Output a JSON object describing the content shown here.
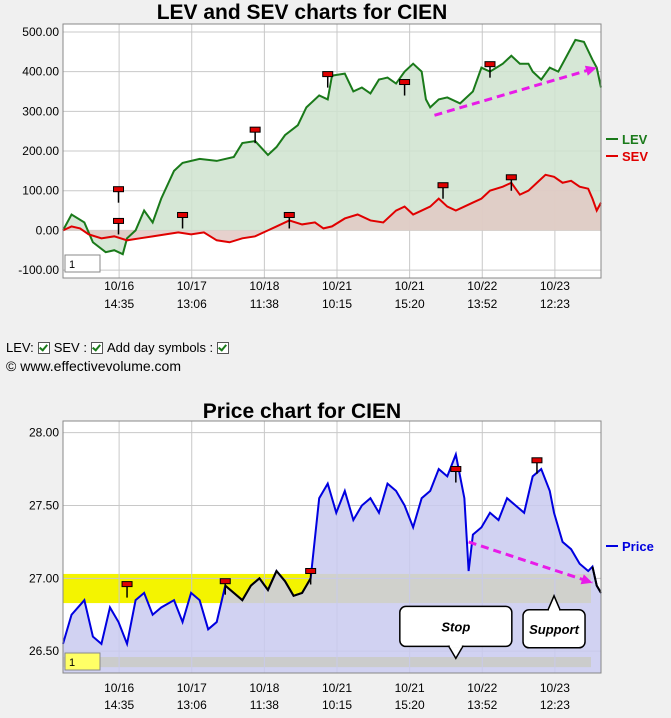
{
  "chart_data": [
    {
      "type": "line",
      "title": "LEV and SEV charts for CIEN",
      "ylim": [
        -120,
        520
      ],
      "yticks": [
        "500.00",
        "400.00",
        "300.00",
        "200.00",
        "100.00",
        "0.00",
        "-100.00"
      ],
      "xticks": [
        {
          "date": "10/16",
          "time": "14:35"
        },
        {
          "date": "10/17",
          "time": "13:06"
        },
        {
          "date": "10/18",
          "time": "11:38"
        },
        {
          "date": "10/21",
          "time": "10:15"
        },
        {
          "date": "10/21",
          "time": "15:20"
        },
        {
          "date": "10/22",
          "time": "13:52"
        },
        {
          "date": "10/23",
          "time": "12:23"
        }
      ],
      "input_value": "1",
      "legend_position": "right",
      "series": [
        {
          "name": "LEV",
          "color": "#1a7a1a",
          "fill": "#cfe3cf",
          "points": [
            [
              0,
              0
            ],
            [
              0.02,
              40
            ],
            [
              0.05,
              20
            ],
            [
              0.07,
              -30
            ],
            [
              0.1,
              -55
            ],
            [
              0.12,
              -50
            ],
            [
              0.14,
              -60
            ],
            [
              0.15,
              -20
            ],
            [
              0.17,
              0
            ],
            [
              0.19,
              50
            ],
            [
              0.21,
              20
            ],
            [
              0.23,
              80
            ],
            [
              0.26,
              150
            ],
            [
              0.28,
              170
            ],
            [
              0.32,
              180
            ],
            [
              0.36,
              175
            ],
            [
              0.4,
              185
            ],
            [
              0.42,
              220
            ],
            [
              0.45,
              225
            ],
            [
              0.48,
              190
            ],
            [
              0.5,
              210
            ],
            [
              0.52,
              240
            ],
            [
              0.55,
              265
            ],
            [
              0.57,
              310
            ],
            [
              0.6,
              340
            ],
            [
              0.62,
              330
            ],
            [
              0.63,
              390
            ],
            [
              0.66,
              395
            ],
            [
              0.68,
              350
            ],
            [
              0.7,
              360
            ],
            [
              0.72,
              345
            ],
            [
              0.74,
              380
            ],
            [
              0.76,
              385
            ],
            [
              0.78,
              370
            ],
            [
              0.8,
              400
            ],
            [
              0.82,
              420
            ],
            [
              0.84,
              400
            ],
            [
              0.85,
              330
            ],
            [
              0.86,
              310
            ],
            [
              0.88,
              330
            ],
            [
              0.9,
              335
            ],
            [
              0.93,
              320
            ],
            [
              0.96,
              350
            ],
            [
              0.98,
              410
            ],
            [
              1.0,
              400
            ],
            [
              1.03,
              420
            ],
            [
              1.05,
              440
            ],
            [
              1.07,
              420
            ],
            [
              1.09,
              420
            ],
            [
              1.1,
              400
            ],
            [
              1.12,
              380
            ],
            [
              1.14,
              410
            ],
            [
              1.16,
              400
            ],
            [
              1.18,
              440
            ],
            [
              1.2,
              480
            ],
            [
              1.22,
              475
            ],
            [
              1.24,
              430
            ],
            [
              1.25,
              410
            ],
            [
              1.26,
              360
            ]
          ]
        },
        {
          "name": "SEV",
          "color": "#e00000",
          "fill": "#e2c9c4",
          "points": [
            [
              0,
              0
            ],
            [
              0.02,
              10
            ],
            [
              0.04,
              5
            ],
            [
              0.06,
              -10
            ],
            [
              0.09,
              -20
            ],
            [
              0.12,
              -15
            ],
            [
              0.15,
              -25
            ],
            [
              0.18,
              -20
            ],
            [
              0.21,
              -15
            ],
            [
              0.24,
              -10
            ],
            [
              0.27,
              -5
            ],
            [
              0.3,
              -10
            ],
            [
              0.33,
              -5
            ],
            [
              0.36,
              -25
            ],
            [
              0.39,
              -30
            ],
            [
              0.42,
              -20
            ],
            [
              0.45,
              -15
            ],
            [
              0.48,
              0
            ],
            [
              0.5,
              10
            ],
            [
              0.53,
              25
            ],
            [
              0.56,
              15
            ],
            [
              0.59,
              20
            ],
            [
              0.61,
              5
            ],
            [
              0.63,
              10
            ],
            [
              0.66,
              30
            ],
            [
              0.69,
              40
            ],
            [
              0.72,
              25
            ],
            [
              0.75,
              20
            ],
            [
              0.78,
              50
            ],
            [
              0.8,
              60
            ],
            [
              0.82,
              40
            ],
            [
              0.84,
              50
            ],
            [
              0.86,
              60
            ],
            [
              0.88,
              80
            ],
            [
              0.9,
              60
            ],
            [
              0.92,
              50
            ],
            [
              0.94,
              60
            ],
            [
              0.96,
              70
            ],
            [
              0.98,
              80
            ],
            [
              1.0,
              100
            ],
            [
              1.03,
              110
            ],
            [
              1.05,
              120
            ],
            [
              1.07,
              90
            ],
            [
              1.09,
              100
            ],
            [
              1.11,
              120
            ],
            [
              1.13,
              140
            ],
            [
              1.15,
              135
            ],
            [
              1.17,
              120
            ],
            [
              1.19,
              125
            ],
            [
              1.21,
              110
            ],
            [
              1.23,
              105
            ],
            [
              1.24,
              80
            ],
            [
              1.25,
              50
            ],
            [
              1.26,
              70
            ]
          ]
        }
      ],
      "day_markers": [
        [
          0.13,
          20
        ],
        [
          0.13,
          100
        ],
        [
          0.28,
          35
        ],
        [
          0.45,
          250
        ],
        [
          0.53,
          35
        ],
        [
          0.62,
          390
        ],
        [
          0.8,
          370
        ],
        [
          0.89,
          110
        ],
        [
          1.0,
          415
        ],
        [
          1.05,
          130
        ]
      ],
      "arrow": {
        "from": [
          0.87,
          290
        ],
        "to": [
          1.25,
          410
        ],
        "color": "#e81be8"
      }
    },
    {
      "type": "line",
      "title": "Price chart for CIEN",
      "ylim": [
        26.35,
        28.08
      ],
      "yticks": [
        "28.00",
        "27.50",
        "27.00",
        "26.50"
      ],
      "xticks": [
        {
          "date": "10/16",
          "time": "14:35"
        },
        {
          "date": "10/17",
          "time": "13:06"
        },
        {
          "date": "10/18",
          "time": "11:38"
        },
        {
          "date": "10/21",
          "time": "10:15"
        },
        {
          "date": "10/21",
          "time": "15:20"
        },
        {
          "date": "10/22",
          "time": "13:52"
        },
        {
          "date": "10/23",
          "time": "12:23"
        }
      ],
      "input_value": "1",
      "legend_position": "right",
      "series": [
        {
          "name": "Price",
          "color": "#0000e0",
          "fill": "#c9caf0",
          "points": [
            [
              0,
              26.55
            ],
            [
              0.02,
              26.75
            ],
            [
              0.05,
              26.85
            ],
            [
              0.07,
              26.6
            ],
            [
              0.09,
              26.55
            ],
            [
              0.11,
              26.8
            ],
            [
              0.13,
              26.7
            ],
            [
              0.15,
              26.55
            ],
            [
              0.17,
              26.85
            ],
            [
              0.19,
              26.9
            ],
            [
              0.21,
              26.75
            ],
            [
              0.23,
              26.8
            ],
            [
              0.26,
              26.85
            ],
            [
              0.28,
              26.7
            ],
            [
              0.3,
              26.9
            ],
            [
              0.32,
              26.85
            ],
            [
              0.34,
              26.65
            ],
            [
              0.36,
              26.7
            ],
            [
              0.38,
              26.95
            ],
            [
              0.4,
              26.9
            ],
            [
              0.42,
              26.85
            ],
            [
              0.44,
              26.95
            ],
            [
              0.46,
              27.0
            ],
            [
              0.48,
              26.92
            ],
            [
              0.5,
              27.05
            ],
            [
              0.52,
              26.98
            ],
            [
              0.54,
              26.88
            ],
            [
              0.56,
              26.9
            ],
            [
              0.57,
              26.95
            ],
            [
              0.58,
              27.0
            ],
            [
              0.6,
              27.55
            ],
            [
              0.62,
              27.65
            ],
            [
              0.64,
              27.45
            ],
            [
              0.66,
              27.6
            ],
            [
              0.68,
              27.4
            ],
            [
              0.7,
              27.5
            ],
            [
              0.72,
              27.55
            ],
            [
              0.74,
              27.45
            ],
            [
              0.76,
              27.65
            ],
            [
              0.78,
              27.6
            ],
            [
              0.8,
              27.5
            ],
            [
              0.82,
              27.35
            ],
            [
              0.84,
              27.55
            ],
            [
              0.86,
              27.6
            ],
            [
              0.88,
              27.75
            ],
            [
              0.9,
              27.7
            ],
            [
              0.92,
              27.85
            ],
            [
              0.94,
              27.55
            ],
            [
              0.95,
              27.05
            ],
            [
              0.96,
              27.3
            ],
            [
              0.98,
              27.35
            ],
            [
              1.0,
              27.45
            ],
            [
              1.02,
              27.4
            ],
            [
              1.04,
              27.55
            ],
            [
              1.06,
              27.5
            ],
            [
              1.08,
              27.45
            ],
            [
              1.1,
              27.7
            ],
            [
              1.12,
              27.75
            ],
            [
              1.14,
              27.6
            ],
            [
              1.15,
              27.45
            ],
            [
              1.17,
              27.25
            ],
            [
              1.19,
              27.2
            ],
            [
              1.21,
              27.1
            ],
            [
              1.23,
              27.05
            ],
            [
              1.24,
              27.08
            ],
            [
              1.25,
              26.95
            ],
            [
              1.26,
              26.9
            ]
          ]
        }
      ],
      "black_segments": [
        [
          0.37,
          0.58
        ],
        [
          1.24,
          1.26
        ]
      ],
      "day_markers": [
        [
          0.15,
          26.95
        ],
        [
          0.38,
          26.97
        ],
        [
          0.58,
          27.04
        ],
        [
          0.92,
          27.74
        ],
        [
          1.11,
          27.8
        ]
      ],
      "bands": [
        {
          "y0": 26.83,
          "y1": 27.03,
          "color": "#f4f400"
        },
        {
          "y0": 26.39,
          "y1": 26.46,
          "color": "#d4d400"
        }
      ],
      "arrow": {
        "from": [
          0.95,
          27.25
        ],
        "to": [
          1.24,
          26.97
        ],
        "color": "#e81be8"
      },
      "callouts": [
        {
          "text": "Stop",
          "tip": [
            0.92,
            26.45
          ]
        },
        {
          "text": "Support",
          "tip": [
            1.15,
            26.88
          ]
        }
      ]
    }
  ],
  "controls": {
    "lev_label": "LEV:",
    "sev_label": "SEV :",
    "day_symbols_label": "Add day symbols :",
    "copyright": "© www.effectivevolume.com"
  }
}
